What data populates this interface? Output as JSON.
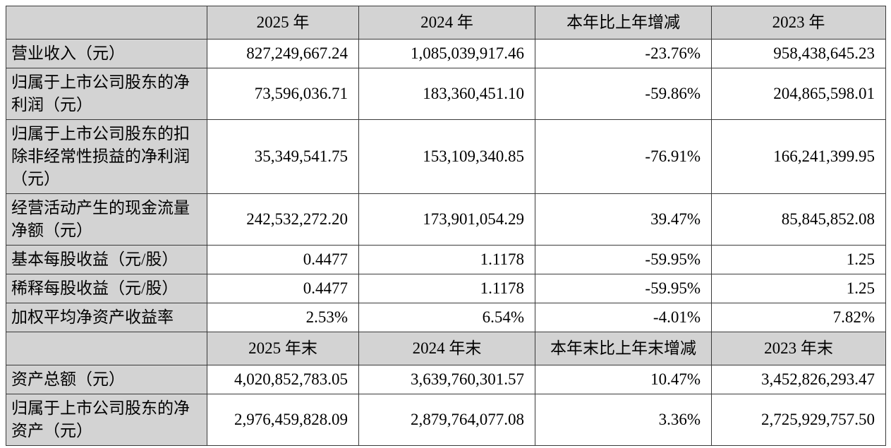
{
  "colors": {
    "header_bg": "#d3d3d3",
    "cell_bg": "#ffffff",
    "border": "#3a3a3a",
    "text": "#000000"
  },
  "table": {
    "sections": [
      {
        "columns": [
          "",
          "2025 年",
          "2024 年",
          "本年比上年增减",
          "2023 年"
        ],
        "rows": [
          {
            "label": "营业收入（元）",
            "values": [
              "827,249,667.24",
              "1,085,039,917.46",
              "-23.76%",
              "958,438,645.23"
            ]
          },
          {
            "label": "归属于上市公司股东的净利润（元）",
            "values": [
              "73,596,036.71",
              "183,360,451.10",
              "-59.86%",
              "204,865,598.01"
            ]
          },
          {
            "label": "归属于上市公司股东的扣除非经常性损益的净利润（元）",
            "values": [
              "35,349,541.75",
              "153,109,340.85",
              "-76.91%",
              "166,241,399.95"
            ]
          },
          {
            "label": "经营活动产生的现金流量净额（元）",
            "values": [
              "242,532,272.20",
              "173,901,054.29",
              "39.47%",
              "85,845,852.08"
            ]
          },
          {
            "label": "基本每股收益（元/股）",
            "values": [
              "0.4477",
              "1.1178",
              "-59.95%",
              "1.25"
            ]
          },
          {
            "label": "稀释每股收益（元/股）",
            "values": [
              "0.4477",
              "1.1178",
              "-59.95%",
              "1.25"
            ]
          },
          {
            "label": "加权平均净资产收益率",
            "values": [
              "2.53%",
              "6.54%",
              "-4.01%",
              "7.82%"
            ]
          }
        ]
      },
      {
        "columns": [
          "",
          "2025 年末",
          "2024 年末",
          "本年末比上年末增减",
          "2023 年末"
        ],
        "rows": [
          {
            "label": "资产总额（元）",
            "values": [
              "4,020,852,783.05",
              "3,639,760,301.57",
              "10.47%",
              "3,452,826,293.47"
            ]
          },
          {
            "label": "归属于上市公司股东的净资产（元）",
            "values": [
              "2,976,459,828.09",
              "2,879,764,077.08",
              "3.36%",
              "2,725,929,757.50"
            ]
          }
        ]
      }
    ]
  }
}
